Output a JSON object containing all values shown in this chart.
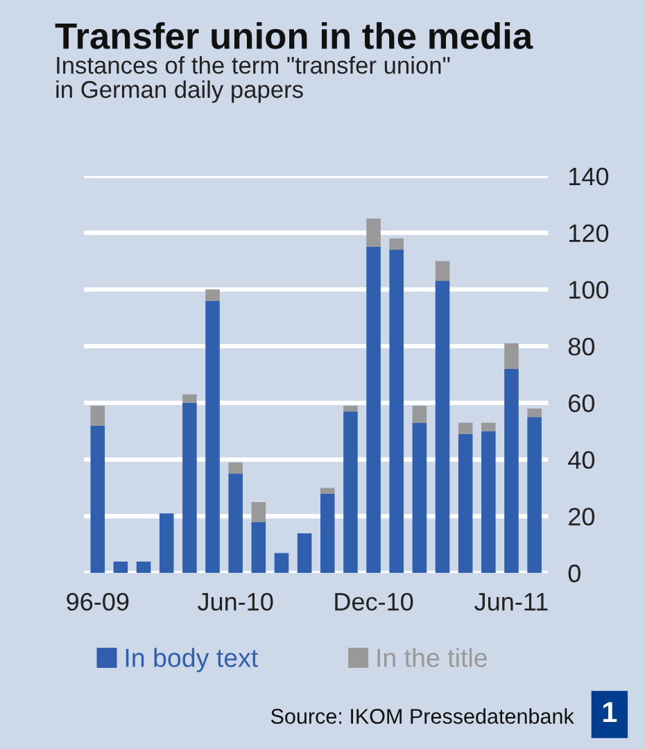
{
  "chart_data": {
    "type": "bar",
    "title": "Transfer union in the media",
    "subtitle": "Instances of the term \"transfer union\"\nin German daily papers",
    "categories": [
      "96-09",
      null,
      null,
      null,
      null,
      null,
      "Jun-10",
      null,
      null,
      null,
      null,
      null,
      "Dec-10",
      null,
      null,
      null,
      null,
      null,
      "Jun-11",
      null
    ],
    "stacked": true,
    "series": [
      {
        "name": "In body text",
        "color": "#3060ad",
        "values": [
          52,
          4,
          4,
          21,
          60,
          96,
          35,
          18,
          7,
          14,
          28,
          57,
          115,
          114,
          53,
          103,
          49,
          50,
          72,
          55
        ]
      },
      {
        "name": "In the title",
        "color": "#999999",
        "values": [
          7,
          0,
          0,
          0,
          3,
          4,
          4,
          7,
          0,
          0,
          2,
          2,
          10,
          4,
          6,
          7,
          4,
          3,
          9,
          3
        ]
      }
    ],
    "ylim": [
      0,
      140
    ],
    "yticks": [
      0,
      20,
      40,
      60,
      80,
      100,
      120,
      140
    ],
    "grid": "y",
    "legend": "bottom",
    "annotations": [
      "Source: IKOM Pressedatenbank",
      "1"
    ]
  }
}
